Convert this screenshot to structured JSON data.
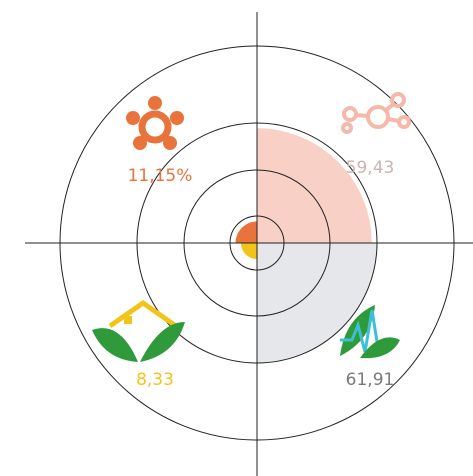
{
  "chart_data": {
    "type": "polar-area",
    "values": [
      11.15,
      59.43,
      8.33,
      61.91
    ],
    "value_labels": [
      "11,15%",
      "59,43",
      "8,33",
      "61,91"
    ],
    "colors": [
      "#e8743b",
      "#f8d0c5",
      "#f2c418",
      "#e6e7eb"
    ],
    "label_colors": [
      "#e8743b",
      "#c9b5b1",
      "#f2c418",
      "#7a7a7a"
    ]
  }
}
